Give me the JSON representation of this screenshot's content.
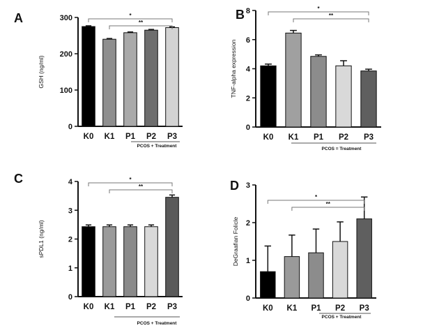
{
  "chart_data": [
    {
      "panel": "A",
      "type": "bar",
      "categories": [
        "K0",
        "K1",
        "P1",
        "P2",
        "P3"
      ],
      "values": [
        275,
        240,
        258,
        265,
        272
      ],
      "errors": [
        2,
        2,
        2,
        2,
        2
      ],
      "colors": [
        "#000000",
        "#8f8f8f",
        "#aaaaaa",
        "#6e6e6e",
        "#d3d3d3"
      ],
      "ylabel": "GSH (ng/ml)",
      "ylim": [
        0,
        300
      ],
      "yticks": [
        "0",
        "100",
        "200",
        "300"
      ],
      "group_label": "PCOS + Treatment",
      "brackets": [
        {
          "from": "K0",
          "to": "P3",
          "label": "*"
        },
        {
          "from": "K1",
          "to": "P3",
          "label": "**"
        }
      ]
    },
    {
      "panel": "B",
      "type": "bar",
      "categories": [
        "K0",
        "K1",
        "P1",
        "P2",
        "P3"
      ],
      "values": [
        4.2,
        6.45,
        4.85,
        4.2,
        3.85
      ],
      "errors": [
        0.12,
        0.18,
        0.1,
        0.35,
        0.12
      ],
      "colors": [
        "#000000",
        "#a0a0a0",
        "#8c8c8c",
        "#d9d9d9",
        "#5f5f5f"
      ],
      "ylabel": "TNF-alpha expression",
      "ylim": [
        0,
        8
      ],
      "yticks": [
        "0",
        "2",
        "4",
        "6",
        "8"
      ],
      "group_label": "PCOS = Treatment",
      "brackets": [
        {
          "from": "K0",
          "to": "P3",
          "label": "*"
        },
        {
          "from": "K1",
          "to": "P3",
          "label": "**"
        }
      ]
    },
    {
      "panel": "C",
      "type": "bar",
      "categories": [
        "K0",
        "K1",
        "P1",
        "P2",
        "P3"
      ],
      "values": [
        2.43,
        2.43,
        2.43,
        2.43,
        3.45
      ],
      "errors": [
        0.06,
        0.06,
        0.06,
        0.06,
        0.08
      ],
      "colors": [
        "#000000",
        "#9a9a9a",
        "#8a8a8a",
        "#d9d9d9",
        "#5a5a5a"
      ],
      "ylabel": "sPDL1 (ng/ml)",
      "ylim": [
        0,
        4
      ],
      "yticks": [
        "0",
        "1",
        "2",
        "3",
        "4"
      ],
      "group_label": "PCOS + Treatment",
      "brackets": [
        {
          "from": "K0",
          "to": "P3",
          "label": "*"
        },
        {
          "from": "K1",
          "to": "P3",
          "label": "**"
        }
      ]
    },
    {
      "panel": "D",
      "type": "bar",
      "categories": [
        "K0",
        "K1",
        "P1",
        "P2",
        "P3"
      ],
      "values": [
        0.7,
        1.1,
        1.2,
        1.5,
        2.1
      ],
      "errors": [
        0.68,
        0.57,
        0.63,
        0.52,
        0.58
      ],
      "colors": [
        "#000000",
        "#9a9a9a",
        "#8c8c8c",
        "#d9d9d9",
        "#5f5f5f"
      ],
      "ylabel": "DeGraafian Folicle",
      "ylim": [
        0,
        3
      ],
      "yticks": [
        "0",
        "1",
        "2",
        "3"
      ],
      "group_label": "PCOS + Treatment",
      "brackets": [
        {
          "from": "K0",
          "to": "P3",
          "label": "*"
        },
        {
          "from": "K1",
          "to": "P3",
          "label": "**"
        }
      ]
    }
  ]
}
